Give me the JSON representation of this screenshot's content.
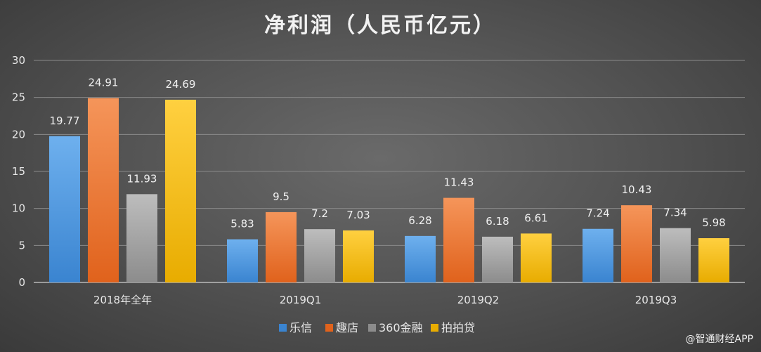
{
  "watermark": "@智通财经APP",
  "colors": {
    "乐信": [
      "#6eb0ee",
      "#3a84d0"
    ],
    "趣店": [
      "#f5955a",
      "#e0621c"
    ],
    "360金融": [
      "#bdbdbd",
      "#8c8c8c"
    ],
    "拍拍贷": [
      "#ffd040",
      "#e8ac00"
    ]
  },
  "chart_data": {
    "type": "bar",
    "title": "净利润（人民币亿元）",
    "categories": [
      "2018年全年",
      "2019Q1",
      "2019Q2",
      "2019Q3"
    ],
    "series": [
      {
        "name": "乐信",
        "values": [
          19.77,
          5.83,
          6.28,
          7.24
        ],
        "labels": [
          "19.77",
          "5.83",
          "6.28",
          "7.24"
        ]
      },
      {
        "name": "趣店",
        "values": [
          24.91,
          9.5,
          11.43,
          10.43
        ],
        "labels": [
          "24.91",
          "9.5",
          "11.43",
          "10.43"
        ]
      },
      {
        "name": "360金融",
        "values": [
          11.93,
          7.2,
          6.18,
          7.34
        ],
        "labels": [
          "11.93",
          "7.2",
          "6.18",
          "7.34"
        ]
      },
      {
        "name": "拍拍贷",
        "values": [
          24.69,
          7.03,
          6.61,
          5.98
        ],
        "labels": [
          "24.69",
          "7.03",
          "6.61",
          "5.98"
        ]
      }
    ],
    "ylim": [
      0,
      30
    ],
    "yticks": [
      "0",
      "5",
      "10",
      "15",
      "20",
      "25",
      "30"
    ],
    "grid": true,
    "legend": "bottom"
  }
}
